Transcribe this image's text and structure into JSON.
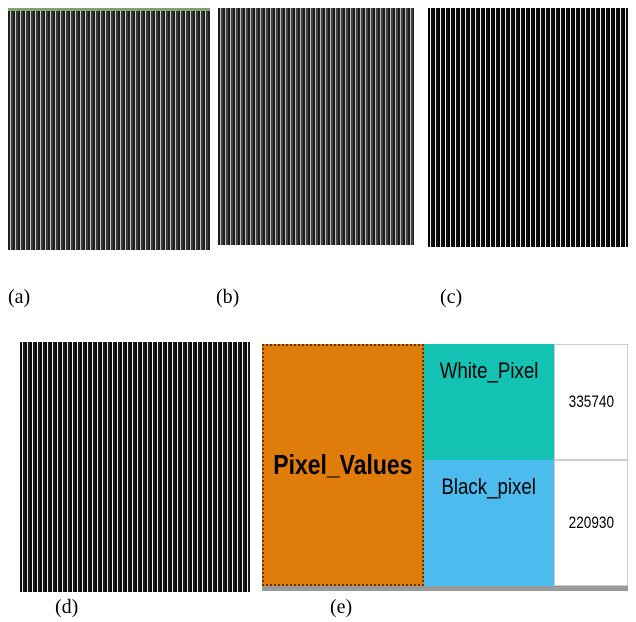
{
  "figure": {
    "labels": [
      "(a)",
      "(b)",
      "(c)",
      "(d)",
      "(e)"
    ],
    "table": {
      "header": "Pixel_Values",
      "rows": [
        [
          "White_Pixel",
          335740
        ],
        [
          "Black_pixel",
          220930
        ]
      ]
    }
  }
}
